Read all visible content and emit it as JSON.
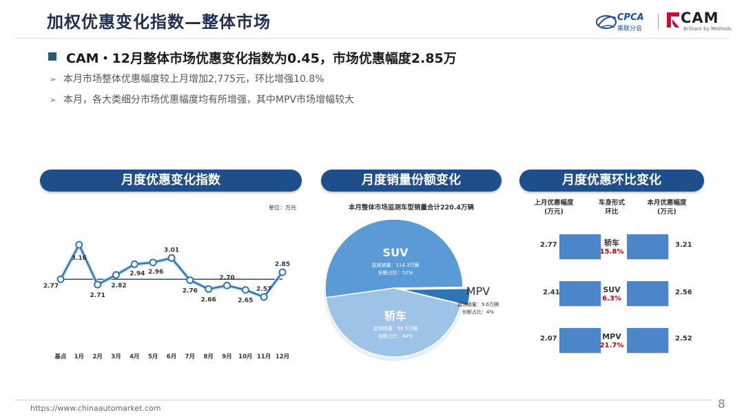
{
  "page": {
    "title": "加权优惠变化指数—整体市场",
    "headline": "CAM・12月整体市场优惠变化指数为0.45，市场优惠幅度2.85万",
    "bullets": [
      "本月市场整体优惠幅度较上月增加2,775元，环比增强10.8%",
      "本月，各大类细分市场优惠幅度均有所增强，其中MPV市场增幅较大"
    ],
    "footer_url": "https://www.chinaautomarket.com",
    "page_number": "8"
  },
  "logos": {
    "cpca_text": "CPCA",
    "cpca_sub": "乘联分会",
    "cam_text": "CAM",
    "cam_sub": "Brilliant by Methods"
  },
  "panels": {
    "index_title": "月度优惠变化指数",
    "share_title": "月度销量份额变化",
    "mom_title": "月度优惠环比变化"
  },
  "line_chart": {
    "unit": "单位：万元"
  },
  "chart_data": [
    {
      "type": "line",
      "title": "",
      "categories": [
        "基点",
        "1月",
        "2月",
        "3月",
        "4月",
        "5月",
        "6月",
        "7月",
        "8月",
        "9月",
        "10月",
        "11月",
        "12月"
      ],
      "series": [
        {
          "values": [
            2.77,
            3.16,
            2.71,
            2.82,
            2.94,
            2.96,
            3.01,
            2.76,
            2.66,
            2.7,
            2.65,
            2.57,
            2.85
          ]
        }
      ],
      "labels": [
        "2.77",
        "3.16",
        "2.71",
        "2.82",
        "2.94",
        "2.96",
        "3.01",
        "2.76",
        "2.66",
        "2.70",
        "2.65",
        "2.57",
        "2.85"
      ],
      "baseline": 2.77,
      "colors": {
        "line": "#2e75b6",
        "marker_fill": "#ffffff",
        "marker_stroke": "#2e75b6",
        "baseline": "#1f4e8c"
      }
    },
    {
      "type": "pie",
      "title": "本月整体市场监测车型销量合计220.4万辆",
      "slices": [
        {
          "name": "SUV",
          "value": 52,
          "line1": "监测销量：114.3万辆",
          "line2": "份额占比：52%",
          "color": "#5b9bd5"
        },
        {
          "name": "轿车",
          "value": 44,
          "line1": "监测销量：96.5万辆",
          "line2": "份额占比：44%",
          "color": "#9dc3e6"
        },
        {
          "name": "MPV",
          "value": 4,
          "line1": "监测销量：9.6万辆",
          "line2": "份额占比：4%",
          "color": "#2e75b6"
        }
      ]
    }
  ],
  "mom": {
    "headers": {
      "last": "上月优惠幅度\n(万元)",
      "type": "车身形式\n环比",
      "this": "本月优惠幅度\n(万元)"
    },
    "rows": [
      {
        "last": "2.77",
        "type": "轿车",
        "pct": "15.8%",
        "this": "3.21"
      },
      {
        "last": "2.41",
        "type": "SUV",
        "pct": "6.3%",
        "this": "2.56"
      },
      {
        "last": "2.07",
        "type": "MPV",
        "pct": "21.7%",
        "this": "2.52"
      }
    ]
  }
}
